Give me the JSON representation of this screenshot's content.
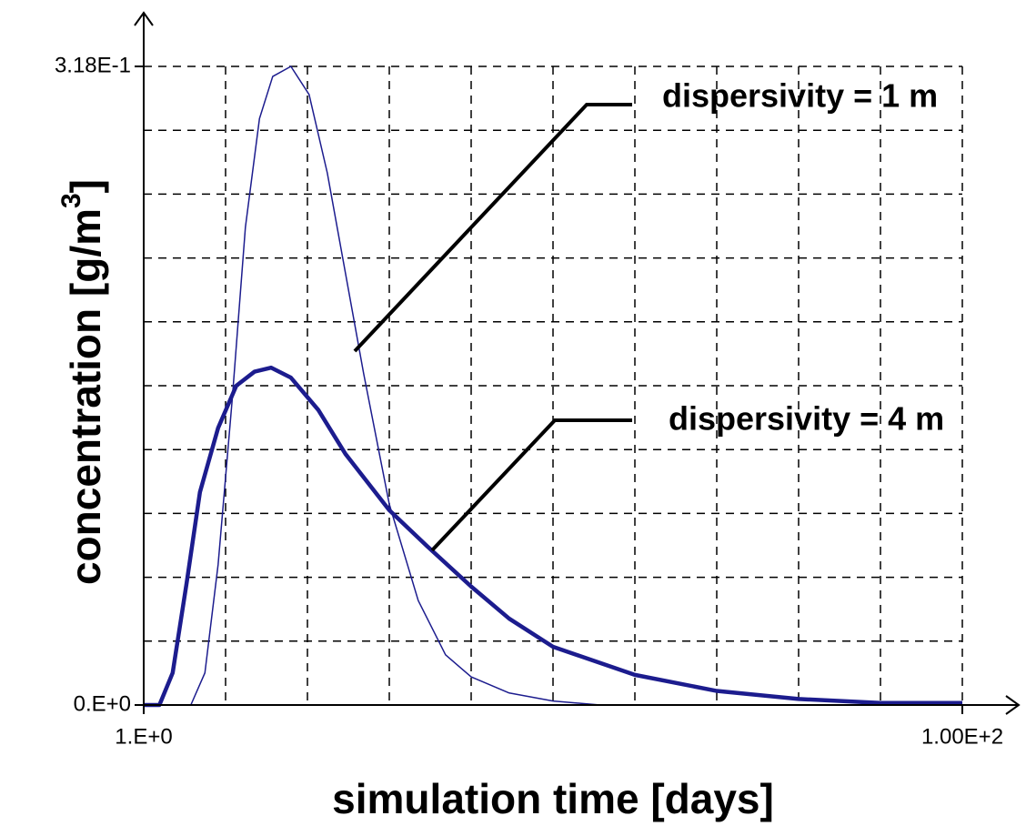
{
  "chart_data": {
    "type": "line",
    "xlabel": "simulation time [days]",
    "ylabel": {
      "text": "concentration [g/m",
      "sup": "3",
      "end": "]"
    },
    "xlim": [
      1,
      100
    ],
    "ylim": [
      0,
      0.318
    ],
    "xticks": [
      {
        "value": 1,
        "label": "1.E+0"
      },
      {
        "value": 100,
        "label": "1.00E+2"
      }
    ],
    "yticks": [
      {
        "value": 0,
        "label": "0.E+0"
      },
      {
        "value": 0.318,
        "label": "3.18E-1"
      }
    ],
    "xgrid": [
      10.9,
      20.8,
      30.7,
      40.6,
      50.5,
      60.4,
      70.3,
      80.2,
      90.1,
      100
    ],
    "ygrid": [
      0.0318,
      0.0636,
      0.0954,
      0.1272,
      0.159,
      0.1908,
      0.2226,
      0.2544,
      0.2862,
      0.318
    ],
    "grid": true,
    "series": [
      {
        "name": "dispersivity = 1 m",
        "color": "#1c1c8e",
        "linewidth": 1.5,
        "x": [
          1,
          6.7,
          8.4,
          10.0,
          11.7,
          13.3,
          15.0,
          16.6,
          18.8,
          21.0,
          23.2,
          25.4,
          27.6,
          30.7,
          34.2,
          37.5,
          40.6,
          45.2,
          50.5,
          56.2
        ],
        "values": [
          0,
          0,
          0.016,
          0.07,
          0.152,
          0.238,
          0.292,
          0.313,
          0.318,
          0.304,
          0.265,
          0.215,
          0.165,
          0.1,
          0.052,
          0.025,
          0.014,
          0.006,
          0.002,
          0
        ]
      },
      {
        "name": "dispersivity = 4 m",
        "color": "#1c1c8e",
        "linewidth": 4.5,
        "x": [
          1,
          2.9,
          4.5,
          6.2,
          7.8,
          10.0,
          12.2,
          14.4,
          16.4,
          18.8,
          22.1,
          25.4,
          30.7,
          35.3,
          40.6,
          45.2,
          50.5,
          60.4,
          70.3,
          80.2,
          90.1,
          100
        ],
        "values": [
          0,
          0,
          0.016,
          0.061,
          0.106,
          0.138,
          0.159,
          0.166,
          0.168,
          0.163,
          0.147,
          0.125,
          0.097,
          0.079,
          0.059,
          0.043,
          0.029,
          0.015,
          0.007,
          0.003,
          0.001,
          0.001
        ]
      }
    ]
  }
}
